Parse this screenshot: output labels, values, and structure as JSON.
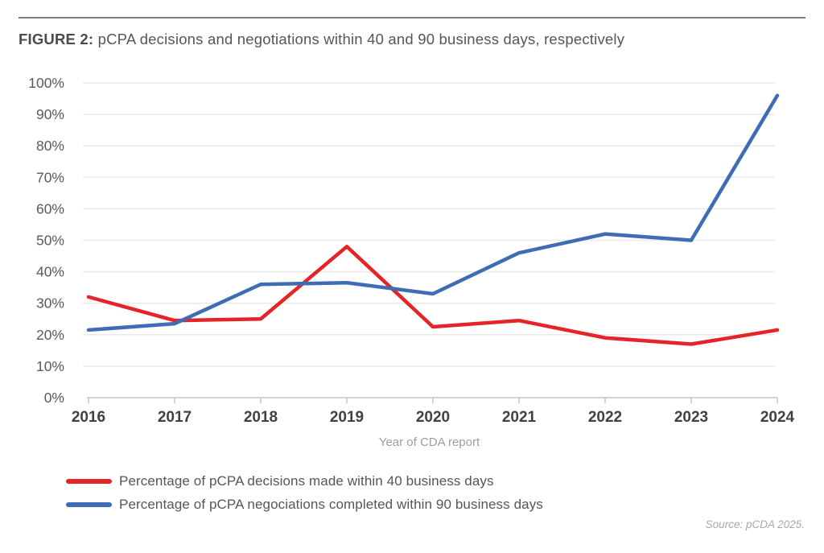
{
  "header": {
    "figure_label": "FIGURE 2:",
    "figure_title": " pCPA decisions and negotiations within 40 and 90 business days, respectively"
  },
  "chart_data": {
    "type": "line",
    "title": "FIGURE 2: pCPA decisions and negotiations within 40 and 90 business days, respectively",
    "categories": [
      "2016",
      "2017",
      "2018",
      "2019",
      "2020",
      "2021",
      "2022",
      "2023",
      "2024"
    ],
    "series": [
      {
        "name": "Percentage of pCPA decisions made within 40 business days",
        "color": "#e42428",
        "values": [
          32,
          24.5,
          25,
          48,
          22.5,
          24.5,
          19,
          17,
          21.5
        ]
      },
      {
        "name": "Percentage of pCPA negociations completed within 90 business days",
        "color": "#3e6cb5",
        "values": [
          21.5,
          23.5,
          36,
          36.5,
          33,
          46,
          52,
          50,
          96
        ]
      }
    ],
    "xlabel": "Year of CDA report",
    "ylabel": "",
    "ylim": [
      0,
      100
    ],
    "y_tick_step": 10,
    "y_tick_suffix": "%",
    "grid": true,
    "legend_position": "bottom-left",
    "colors": {
      "gridline": "#e9e9e9",
      "axis": "#c4c5c7",
      "y_tick_label": "#58595b",
      "x_tick_label": "#414042"
    }
  },
  "footer": {
    "source": "Source: pCDA 2025."
  }
}
